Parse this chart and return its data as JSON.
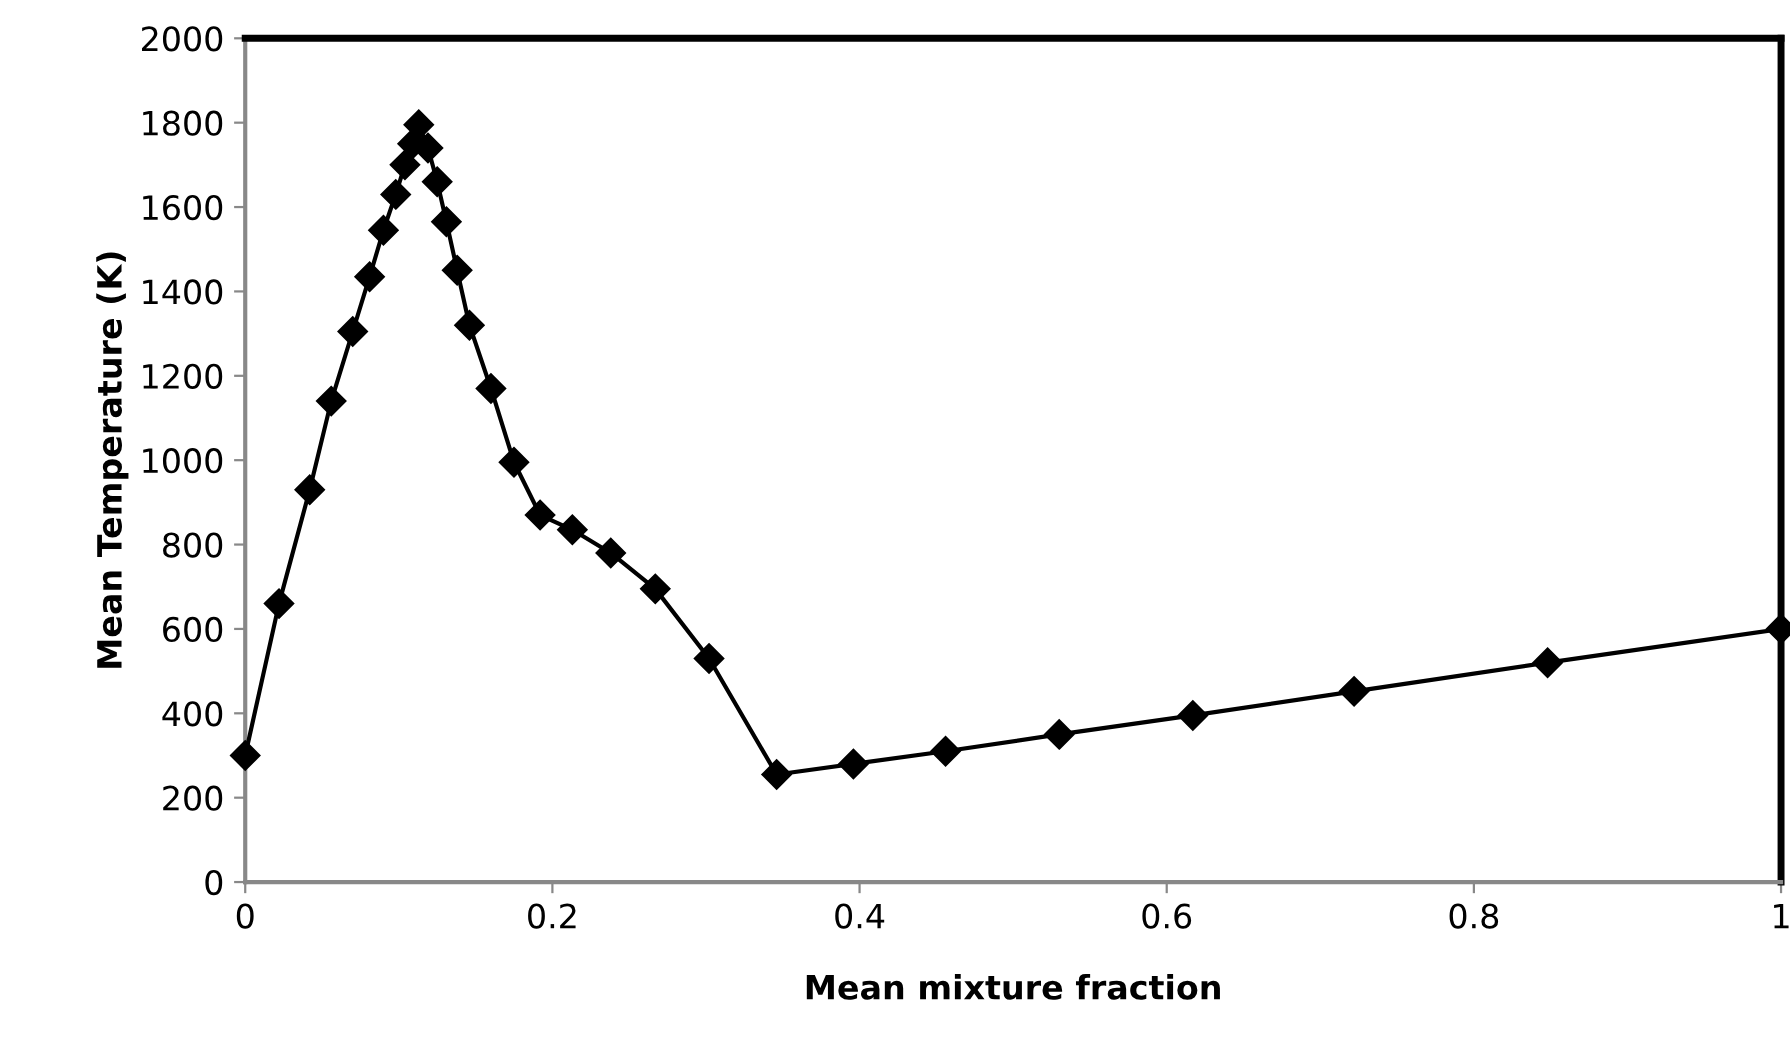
{
  "chart_data": {
    "type": "line",
    "xlabel": "Mean mixture fraction",
    "ylabel": "Mean Temperature (K)",
    "xlim": [
      0,
      1
    ],
    "xticks": [
      0,
      0.2,
      0.4,
      0.6,
      0.8,
      1
    ],
    "ylim": [
      0,
      2000
    ],
    "yticks": [
      0,
      200,
      400,
      600,
      800,
      1000,
      1200,
      1400,
      1600,
      1800,
      2000
    ],
    "grid": false,
    "legend": false,
    "marker": "diamond",
    "line_style": "solid",
    "series": [
      {
        "color": "#000000",
        "x": [
          0,
          0.022,
          0.042,
          0.056,
          0.07,
          0.081,
          0.09,
          0.098,
          0.104,
          0.109,
          0.113,
          0.119,
          0.125,
          0.131,
          0.138,
          0.146,
          0.16,
          0.175,
          0.192,
          0.213,
          0.238,
          0.267,
          0.302,
          0.346,
          0.396,
          0.456,
          0.53,
          0.617,
          0.722,
          0.848,
          1.0
        ],
        "values": [
          300,
          660,
          930,
          1140,
          1305,
          1435,
          1545,
          1630,
          1700,
          1750,
          1795,
          1740,
          1660,
          1565,
          1450,
          1320,
          1170,
          995,
          870,
          835,
          780,
          695,
          530,
          255,
          280,
          310,
          350,
          395,
          452,
          520,
          600
        ]
      }
    ]
  }
}
